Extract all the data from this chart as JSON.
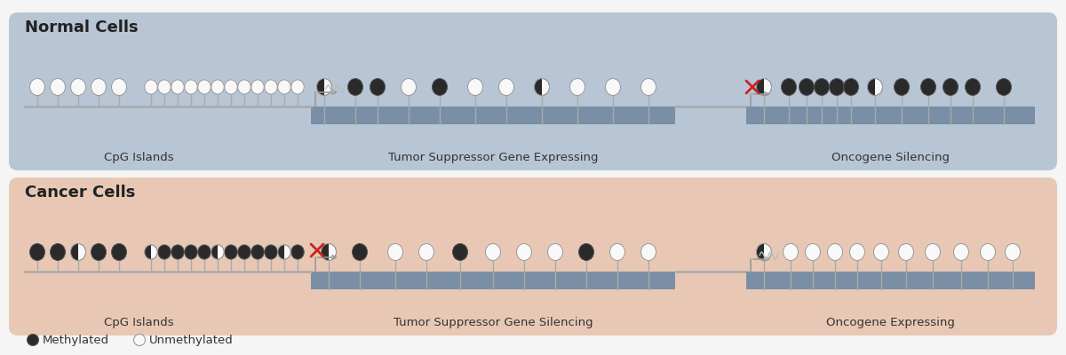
{
  "bg_color": "#f5f5f5",
  "normal_bg": "#b8c5d5",
  "cancer_bg": "#e8c8b5",
  "gene_bar_color": "#7a8fa5",
  "line_color": "#aaaaaa",
  "stem_color": "#aaaaaa",
  "dark_ball": "#2a2a2a",
  "light_ball": "#f8f8f8",
  "red_x_color": "#cc2222",
  "arrow_color": "#999999",
  "wave_color": "#bbbbbb",
  "title_normal": "Normal Cells",
  "title_cancer": "Cancer Cells",
  "label_cpg": "CpG Islands",
  "label_tsg_normal": "Tumor Suppressor Gene Expressing",
  "label_onco_normal": "Oncogene Silencing",
  "label_tsg_cancer": "Tumor Suppressor Gene Silencing",
  "label_onco_cancer": "Oncogene Expressing",
  "legend_methylated": "Methylated",
  "legend_unmethylated": "Unmethylated",
  "figw": 12.0,
  "figh": 4.0,
  "dpi": 100
}
